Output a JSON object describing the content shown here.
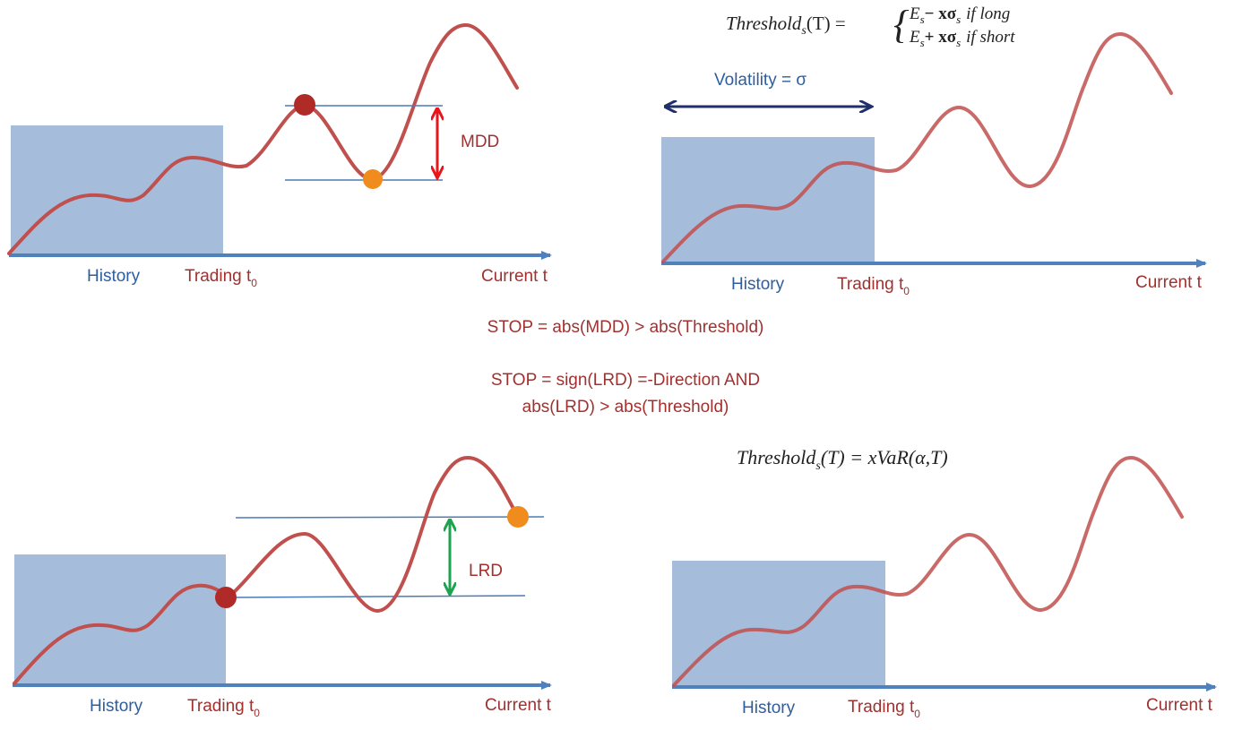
{
  "colors": {
    "axis": "#4F81BD",
    "history_box": "#A6BCDB",
    "price_curve": "#C0504D",
    "level_line": "#4A7CB5",
    "mdd_arrow": "#E8161B",
    "lrd_arrow": "#1BA34F",
    "volatility_arrow": "#1F2F6A",
    "red_dot": "#B02A28",
    "orange_dot": "#F08C1E",
    "label_blue": "#2E5E9E",
    "label_red": "#A0312F"
  },
  "panel_top_left": {
    "history": "History",
    "trading": "Trading t",
    "trading_sub": "0",
    "current": "Current t",
    "mdd": "MDD"
  },
  "panel_top_right": {
    "formula_lhs": "Threshold",
    "formula_lhs_sub": "s",
    "formula_lhs_arg": "(T) =",
    "formula_long": "E",
    "formula_long_rest": "− xσ",
    "formula_long_cond": "if long",
    "formula_short": "E",
    "formula_short_rest": "+ xσ",
    "formula_short_cond": "if short",
    "formula_sub": "s",
    "volatility": "Volatility  = σ",
    "history": "History",
    "trading": "Trading t",
    "trading_sub": "0",
    "current": "Current t"
  },
  "center_text": {
    "line1": "STOP = abs(MDD) > abs(Threshold)",
    "line2": "STOP = sign(LRD) =-Direction AND",
    "line3": "abs(LRD) > abs(Threshold)"
  },
  "panel_bottom_left": {
    "history": "History",
    "trading": "Trading t",
    "trading_sub": "0",
    "current": "Current t",
    "lrd": "LRD"
  },
  "panel_bottom_right": {
    "formula_lhs": "Threshold",
    "formula_lhs_sub": "s",
    "formula_rhs": "(T) = xVaR(α,T)",
    "history": "History",
    "trading": "Trading t",
    "trading_sub": "0",
    "current": "Current t"
  }
}
